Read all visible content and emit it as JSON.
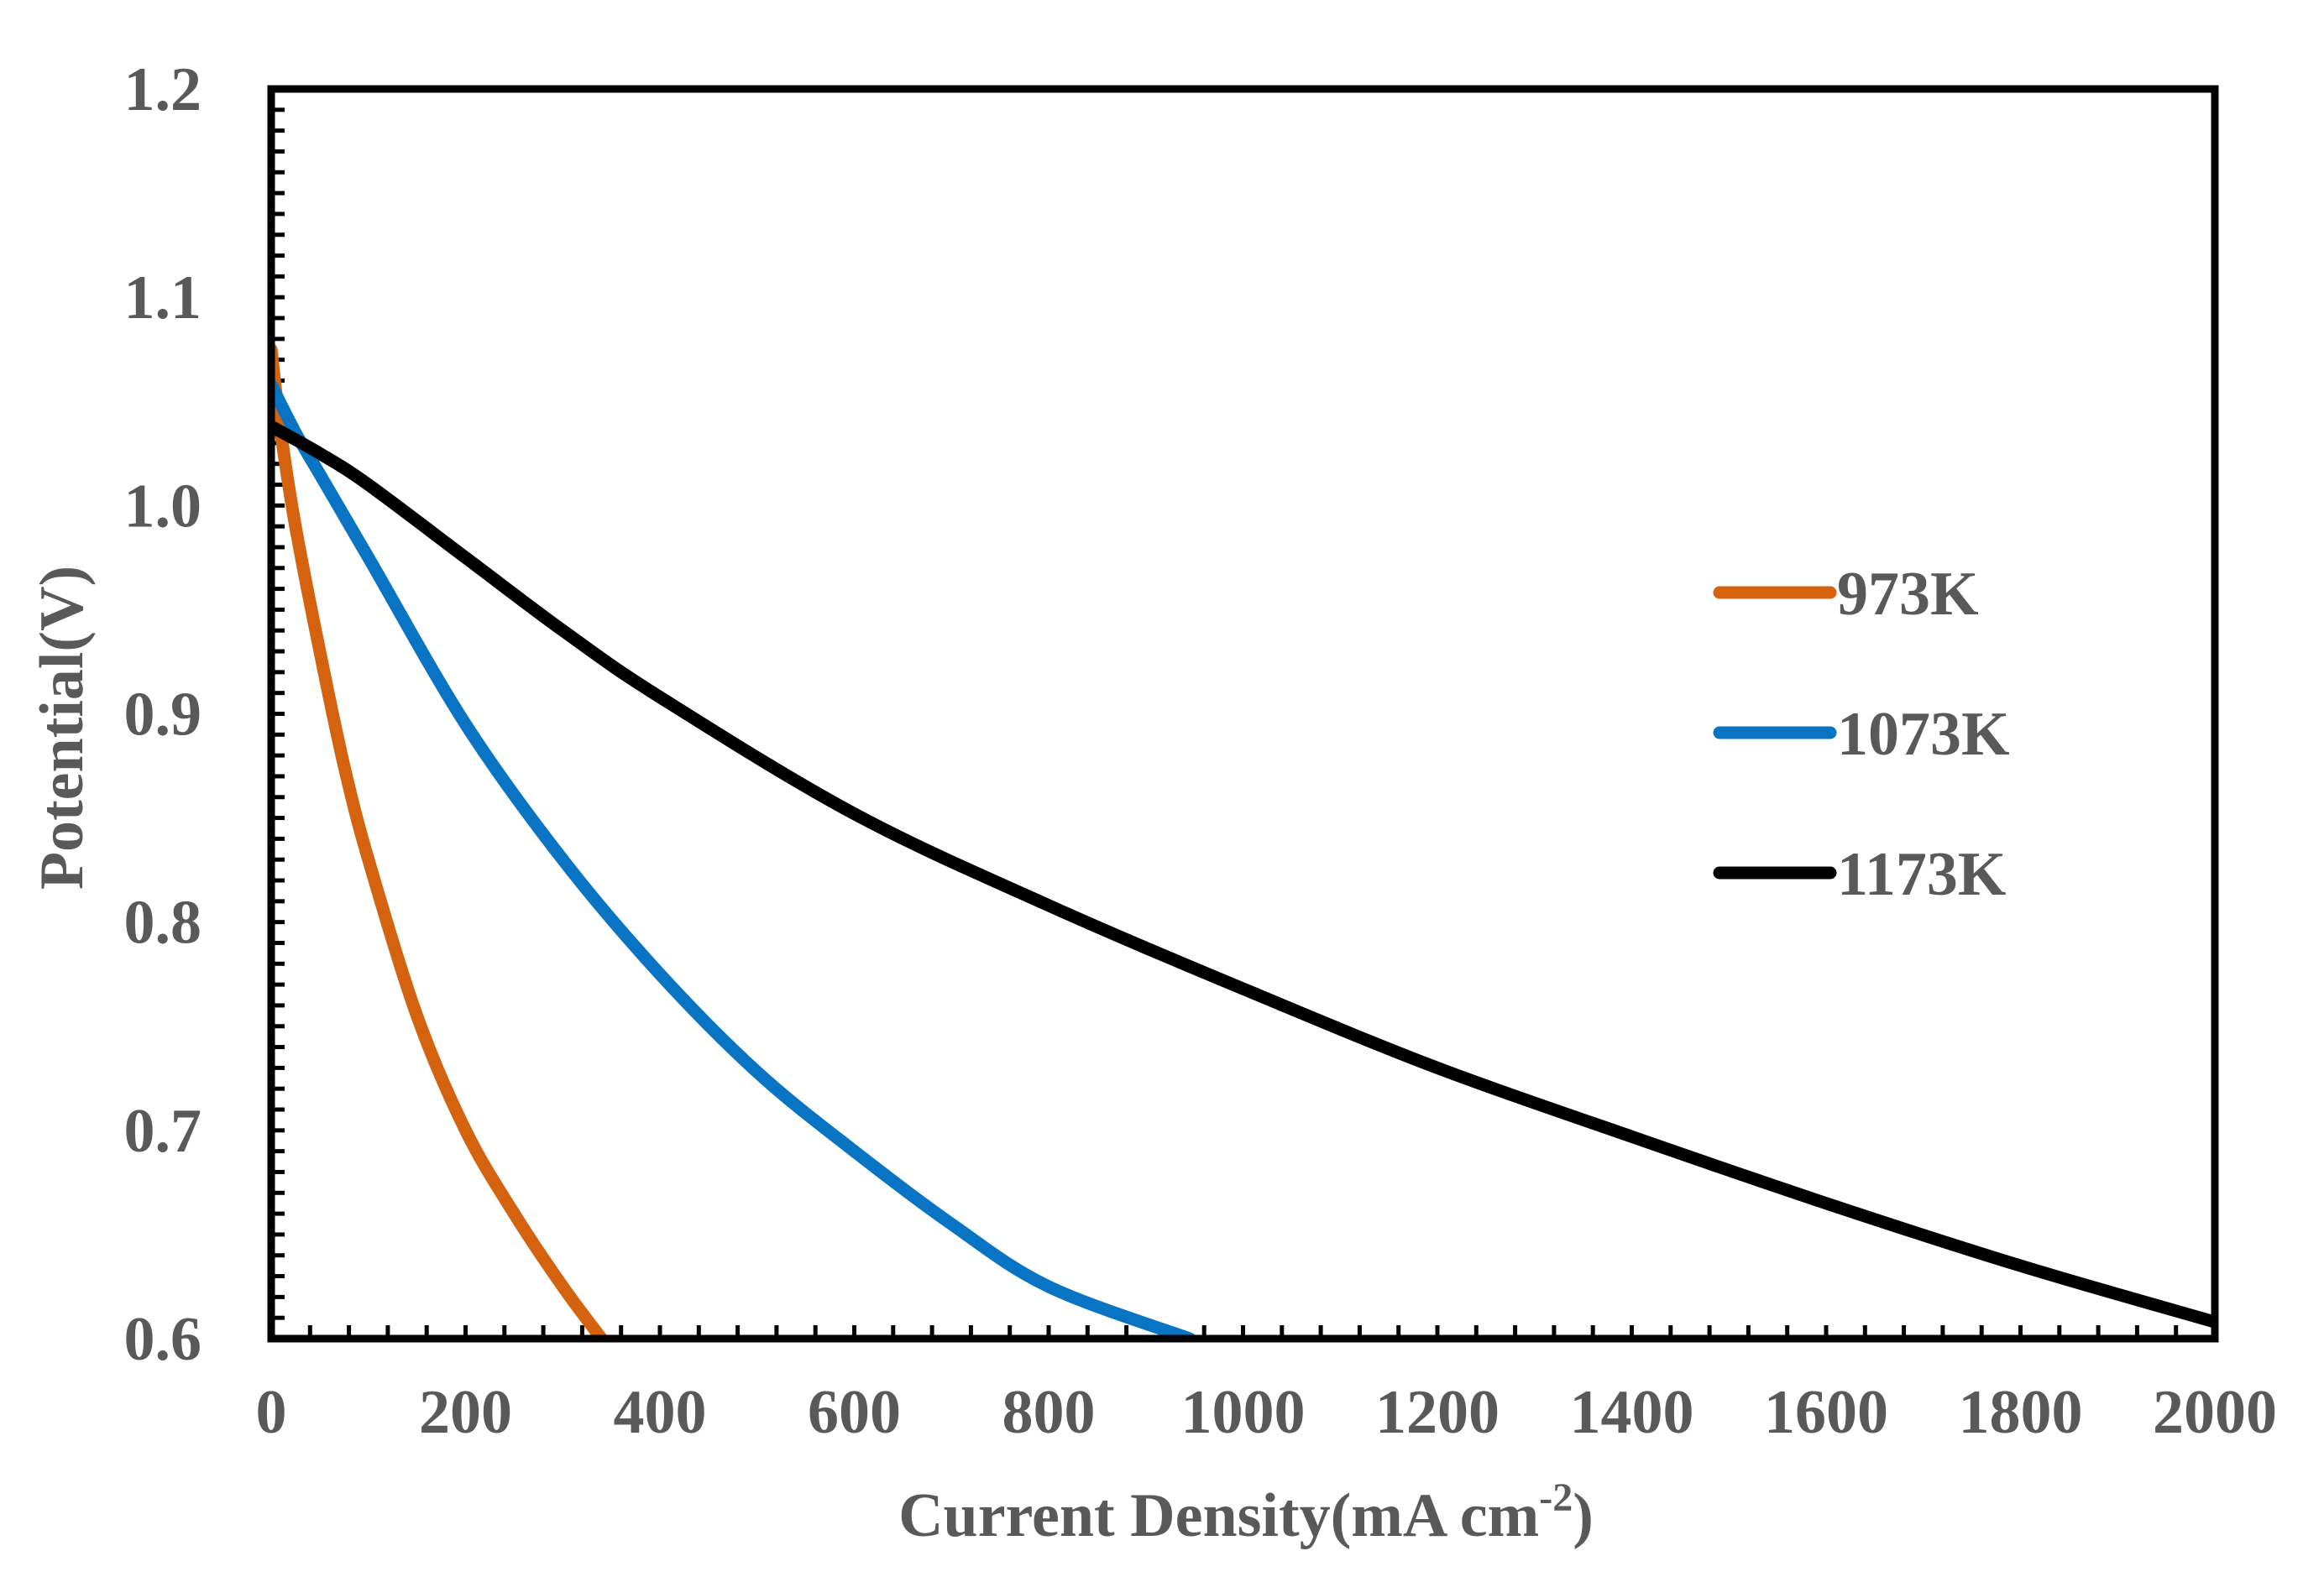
{
  "chart_data": {
    "type": "line",
    "title": "",
    "xlabel": "Current Density(mA cm",
    "xlabel_sup": "-2",
    "xlabel_close": ")",
    "ylabel": "Potential(V)",
    "xlim": [
      0,
      2000
    ],
    "ylim": [
      0.6,
      1.2
    ],
    "x_ticks": [
      0,
      200,
      400,
      600,
      800,
      1000,
      1200,
      1400,
      1600,
      1800,
      2000
    ],
    "x_tick_labels": [
      "0",
      "200",
      "400",
      "600",
      "800",
      "1000",
      "1200",
      "1400",
      "1600",
      "1800",
      "2000"
    ],
    "y_ticks": [
      0.6,
      0.7,
      0.8,
      0.9,
      1.0,
      1.1,
      1.2
    ],
    "y_tick_labels": [
      "0.6",
      "0.7",
      "0.8",
      "0.9",
      "1.0",
      "1.1",
      "1.2"
    ],
    "legend_position": "right",
    "series": [
      {
        "name": "973K",
        "color": "#D4620F",
        "x": [
          0,
          10,
          25,
          50,
          75,
          100,
          150,
          200,
          250,
          300,
          340
        ],
        "y": [
          1.075,
          1.035,
          0.99,
          0.93,
          0.875,
          0.83,
          0.755,
          0.7,
          0.66,
          0.625,
          0.6
        ]
      },
      {
        "name": "1073K",
        "color": "#0A74C4",
        "x": [
          0,
          25,
          50,
          100,
          200,
          300,
          400,
          500,
          600,
          700,
          800,
          945
        ],
        "y": [
          1.058,
          1.035,
          1.015,
          0.975,
          0.895,
          0.83,
          0.775,
          0.728,
          0.69,
          0.655,
          0.625,
          0.6
        ]
      },
      {
        "name": "1173K",
        "color": "#000000",
        "x": [
          0,
          50,
          100,
          200,
          300,
          400,
          600,
          800,
          1000,
          1200,
          1400,
          1600,
          1800,
          2000
        ],
        "y": [
          1.038,
          1.025,
          1.01,
          0.975,
          0.94,
          0.908,
          0.852,
          0.808,
          0.768,
          0.73,
          0.697,
          0.665,
          0.635,
          0.608
        ]
      }
    ]
  }
}
